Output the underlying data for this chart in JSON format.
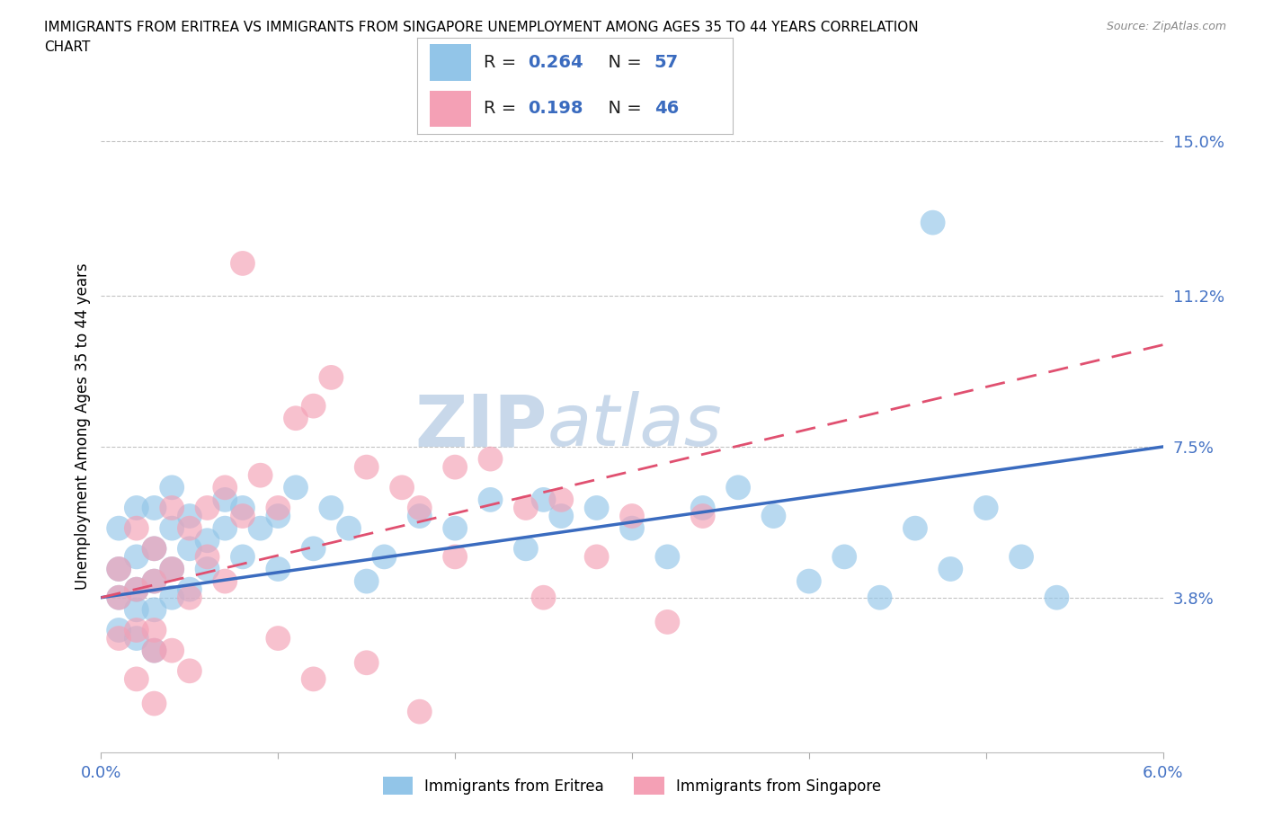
{
  "title_line1": "IMMIGRANTS FROM ERITREA VS IMMIGRANTS FROM SINGAPORE UNEMPLOYMENT AMONG AGES 35 TO 44 YEARS CORRELATION",
  "title_line2": "CHART",
  "source_text": "Source: ZipAtlas.com",
  "ylabel": "Unemployment Among Ages 35 to 44 years",
  "xlim": [
    0.0,
    0.06
  ],
  "ylim": [
    0.0,
    0.16
  ],
  "xticks": [
    0.0,
    0.01,
    0.02,
    0.03,
    0.04,
    0.05,
    0.06
  ],
  "xticklabels": [
    "0.0%",
    "",
    "",
    "",
    "",
    "",
    "6.0%"
  ],
  "ytick_positions": [
    0.038,
    0.075,
    0.112,
    0.15
  ],
  "yticklabels": [
    "3.8%",
    "7.5%",
    "11.2%",
    "15.0%"
  ],
  "legend_labels": [
    "Immigrants from Eritrea",
    "Immigrants from Singapore"
  ],
  "R_eritrea": 0.264,
  "N_eritrea": 57,
  "R_singapore": 0.198,
  "N_singapore": 46,
  "color_eritrea": "#92C5E8",
  "color_singapore": "#F4A0B5",
  "trendline_color_eritrea": "#3A6BBF",
  "trendline_color_singapore": "#E05070",
  "watermark": "ZIPatlas",
  "watermark_color": "#C8D8EA",
  "eritrea_x": [
    0.001,
    0.001,
    0.001,
    0.001,
    0.002,
    0.002,
    0.002,
    0.002,
    0.002,
    0.003,
    0.003,
    0.003,
    0.003,
    0.003,
    0.004,
    0.004,
    0.004,
    0.004,
    0.005,
    0.005,
    0.005,
    0.006,
    0.006,
    0.007,
    0.007,
    0.008,
    0.008,
    0.009,
    0.01,
    0.01,
    0.011,
    0.012,
    0.013,
    0.014,
    0.015,
    0.016,
    0.018,
    0.02,
    0.022,
    0.024,
    0.026,
    0.028,
    0.03,
    0.032,
    0.034,
    0.036,
    0.038,
    0.04,
    0.042,
    0.044,
    0.046,
    0.048,
    0.05,
    0.052,
    0.054,
    0.047,
    0.025
  ],
  "eritrea_y": [
    0.038,
    0.045,
    0.03,
    0.055,
    0.04,
    0.048,
    0.035,
    0.06,
    0.028,
    0.05,
    0.042,
    0.06,
    0.035,
    0.025,
    0.055,
    0.045,
    0.038,
    0.065,
    0.05,
    0.04,
    0.058,
    0.052,
    0.045,
    0.062,
    0.055,
    0.048,
    0.06,
    0.055,
    0.058,
    0.045,
    0.065,
    0.05,
    0.06,
    0.055,
    0.042,
    0.048,
    0.058,
    0.055,
    0.062,
    0.05,
    0.058,
    0.06,
    0.055,
    0.048,
    0.06,
    0.065,
    0.058,
    0.042,
    0.048,
    0.038,
    0.055,
    0.045,
    0.06,
    0.048,
    0.038,
    0.13,
    0.062
  ],
  "singapore_x": [
    0.001,
    0.001,
    0.001,
    0.002,
    0.002,
    0.002,
    0.002,
    0.003,
    0.003,
    0.003,
    0.003,
    0.004,
    0.004,
    0.004,
    0.005,
    0.005,
    0.005,
    0.006,
    0.006,
    0.007,
    0.007,
    0.008,
    0.009,
    0.01,
    0.011,
    0.012,
    0.013,
    0.015,
    0.017,
    0.018,
    0.02,
    0.022,
    0.024,
    0.026,
    0.028,
    0.03,
    0.032,
    0.034,
    0.008,
    0.015,
    0.02,
    0.025,
    0.01,
    0.003,
    0.012,
    0.018
  ],
  "singapore_y": [
    0.045,
    0.038,
    0.028,
    0.055,
    0.04,
    0.03,
    0.018,
    0.05,
    0.042,
    0.03,
    0.025,
    0.06,
    0.045,
    0.025,
    0.055,
    0.038,
    0.02,
    0.06,
    0.048,
    0.065,
    0.042,
    0.058,
    0.068,
    0.06,
    0.082,
    0.085,
    0.092,
    0.07,
    0.065,
    0.06,
    0.07,
    0.072,
    0.06,
    0.062,
    0.048,
    0.058,
    0.032,
    0.058,
    0.12,
    0.022,
    0.048,
    0.038,
    0.028,
    0.012,
    0.018,
    0.01
  ]
}
